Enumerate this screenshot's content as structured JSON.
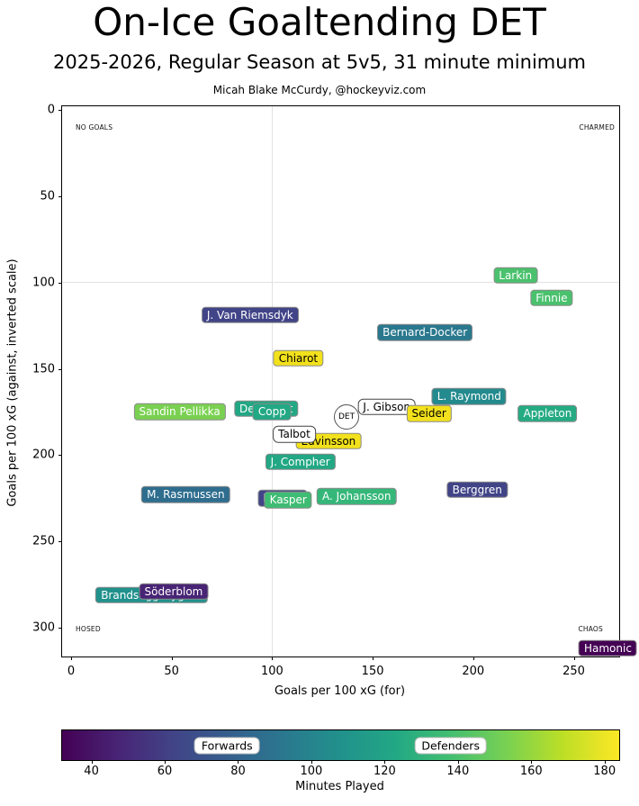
{
  "title": "On-Ice Goaltending DET",
  "subtitle": "2025-2026, Regular Season at 5v5, 31 minute minimum",
  "attribution": "Micah Blake McCurdy, @hockeyviz.com",
  "chart_data": {
    "type": "scatter",
    "title": "On-Ice Goaltending DET",
    "subtitle": "2025-2026, Regular Season at 5v5, 31 minute minimum",
    "attribution": "Micah Blake McCurdy, @hockeyviz.com",
    "xlabel": "Goals per 100 xG (for)",
    "ylabel": "Goals per 100 xG (against, inverted scale)",
    "xlim": [
      -4,
      273
    ],
    "ylim": [
      -2,
      317
    ],
    "y_axis_inverted": true,
    "x_ticks": [
      0,
      50,
      100,
      150,
      200,
      250
    ],
    "y_ticks": [
      0,
      50,
      100,
      150,
      200,
      250,
      300
    ],
    "grid": "reference crosshair only",
    "reference_lines": {
      "x": 100,
      "y": 100
    },
    "corner_labels": {
      "top_left": "NO GOALS",
      "top_right": "CHARMED",
      "bottom_left": "HOSED",
      "bottom_right": "CHAOS"
    },
    "points": [
      {
        "label": "Larkin",
        "x": 221,
        "y": 96,
        "box_color": "#4ac16d",
        "text_color": "#ffffff",
        "shape": "box",
        "z": 1
      },
      {
        "label": "Finnie",
        "x": 239,
        "y": 109,
        "box_color": "#4ac16d",
        "text_color": "#ffffff",
        "shape": "box",
        "z": 1
      },
      {
        "label": "J. Van Riemsdyk",
        "x": 89,
        "y": 119,
        "box_color": "#414487",
        "text_color": "#ffffff",
        "shape": "box",
        "z": 1
      },
      {
        "label": "Bernard-Docker",
        "x": 176,
        "y": 129,
        "box_color": "#2a788e",
        "text_color": "#ffffff",
        "shape": "box",
        "z": 1
      },
      {
        "label": "Chiarot",
        "x": 113,
        "y": 144,
        "box_color": "#f2e11c",
        "text_color": "#000000",
        "shape": "box",
        "z": 1
      },
      {
        "label": "Sandin Pellikka",
        "x": 54,
        "y": 175,
        "box_color": "#7ad151",
        "text_color": "#ffffff",
        "shape": "box",
        "z": 1
      },
      {
        "label": "DeBrincat",
        "x": 97,
        "y": 173,
        "box_color": "#22a884",
        "text_color": "#ffffff",
        "shape": "box",
        "z": 1
      },
      {
        "label": "Copp",
        "x": 100,
        "y": 175,
        "box_color": "#22a884",
        "text_color": "#ffffff",
        "shape": "box",
        "z": 2
      },
      {
        "label": "J. Gibson",
        "x": 157,
        "y": 172,
        "box_color": "#ffffff",
        "text_color": "#000000",
        "shape": "box",
        "z": 2
      },
      {
        "label": "Seider",
        "x": 178,
        "y": 176,
        "box_color": "#f2e11c",
        "text_color": "#000000",
        "shape": "box",
        "z": 3
      },
      {
        "label": "L. Raymond",
        "x": 198,
        "y": 166,
        "box_color": "#238a8d",
        "text_color": "#ffffff",
        "shape": "box",
        "z": 1
      },
      {
        "label": "Appleton",
        "x": 237,
        "y": 176,
        "box_color": "#25ab82",
        "text_color": "#ffffff",
        "shape": "box",
        "z": 1
      },
      {
        "label": "DET",
        "x": 137,
        "y": 178,
        "box_color": "#ffffff",
        "text_color": "#000000",
        "shape": "circle",
        "z": 3
      },
      {
        "label": "Talbot",
        "x": 111,
        "y": 188,
        "box_color": "#ffffff",
        "text_color": "#000000",
        "shape": "box",
        "z": 3
      },
      {
        "label": "Edvinsson",
        "x": 128,
        "y": 192,
        "box_color": "#f2e11c",
        "text_color": "#000000",
        "shape": "box",
        "z": 2
      },
      {
        "label": "J. Compher",
        "x": 114,
        "y": 204,
        "box_color": "#22a884",
        "text_color": "#ffffff",
        "shape": "box",
        "z": 1
      },
      {
        "label": "M. Rasmussen",
        "x": 57,
        "y": 223,
        "box_color": "#2e6d8e",
        "text_color": "#ffffff",
        "shape": "box",
        "z": 1
      },
      {
        "label": "P. Kane",
        "x": 105,
        "y": 225,
        "box_color": "#414487",
        "text_color": "#ffffff",
        "shape": "box",
        "z": 1
      },
      {
        "label": "Kasper",
        "x": 108,
        "y": 226,
        "box_color": "#3fbc73",
        "text_color": "#ffffff",
        "shape": "box",
        "z": 2
      },
      {
        "label": "A. Johansson",
        "x": 142,
        "y": 224,
        "box_color": "#35b779",
        "text_color": "#ffffff",
        "shape": "box",
        "z": 1
      },
      {
        "label": "Berggren",
        "x": 202,
        "y": 220,
        "box_color": "#414487",
        "text_color": "#ffffff",
        "shape": "box",
        "z": 1
      },
      {
        "label": "Brandsegg-Nygård",
        "x": 40,
        "y": 281,
        "box_color": "#21918c",
        "text_color": "#ffffff",
        "shape": "box",
        "z": 1
      },
      {
        "label": "Söderblom",
        "x": 51,
        "y": 279,
        "box_color": "#482475",
        "text_color": "#ffffff",
        "shape": "box",
        "z": 2
      },
      {
        "label": "Hamonic",
        "x": 267,
        "y": 312,
        "box_color": "#440154",
        "text_color": "#ffffff",
        "shape": "box",
        "z": 1
      }
    ],
    "colorbar": {
      "label": "Minutes Played",
      "palette": "viridis",
      "min": 32,
      "max": 184,
      "ticks": [
        40,
        60,
        80,
        100,
        120,
        140,
        160,
        180
      ],
      "annotations": [
        {
          "text": "Forwards",
          "minutes": 77
        },
        {
          "text": "Defenders",
          "minutes": 138
        }
      ]
    }
  }
}
